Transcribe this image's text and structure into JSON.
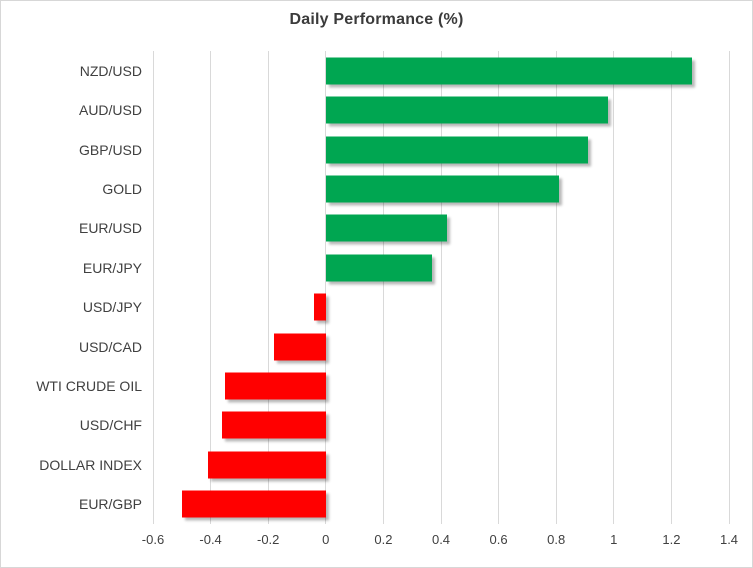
{
  "chart_data": {
    "type": "bar",
    "orientation": "horizontal",
    "title": "Daily Performance (%)",
    "categories": [
      "NZD/USD",
      "AUD/USD",
      "GBP/USD",
      "GOLD",
      "EUR/USD",
      "EUR/JPY",
      "USD/JPY",
      "USD/CAD",
      "WTI CRUDE OIL",
      "USD/CHF",
      "DOLLAR INDEX",
      "EUR/GBP"
    ],
    "values": [
      1.27,
      0.98,
      0.91,
      0.81,
      0.42,
      0.37,
      -0.04,
      -0.18,
      -0.35,
      -0.36,
      -0.41,
      -0.5
    ],
    "xlim": [
      -0.6,
      1.4
    ],
    "x_ticks": [
      -0.6,
      -0.4,
      -0.2,
      0,
      0.2,
      0.4,
      0.6,
      0.8,
      1,
      1.2,
      1.4
    ],
    "x_tick_labels": [
      "-0.6",
      "-0.4",
      "-0.2",
      "0",
      "0.2",
      "0.4",
      "0.6",
      "0.8",
      "1",
      "1.2",
      "1.4"
    ],
    "grid": true,
    "legend": false,
    "xlabel": "",
    "ylabel": "",
    "colors": {
      "positive": "#00a651",
      "negative": "#ff0000",
      "gridline": "#d9d9d9",
      "text": "#404040",
      "title_text": "#3b3b3b",
      "border": "#d7d7d7",
      "background": "#ffffff"
    }
  }
}
